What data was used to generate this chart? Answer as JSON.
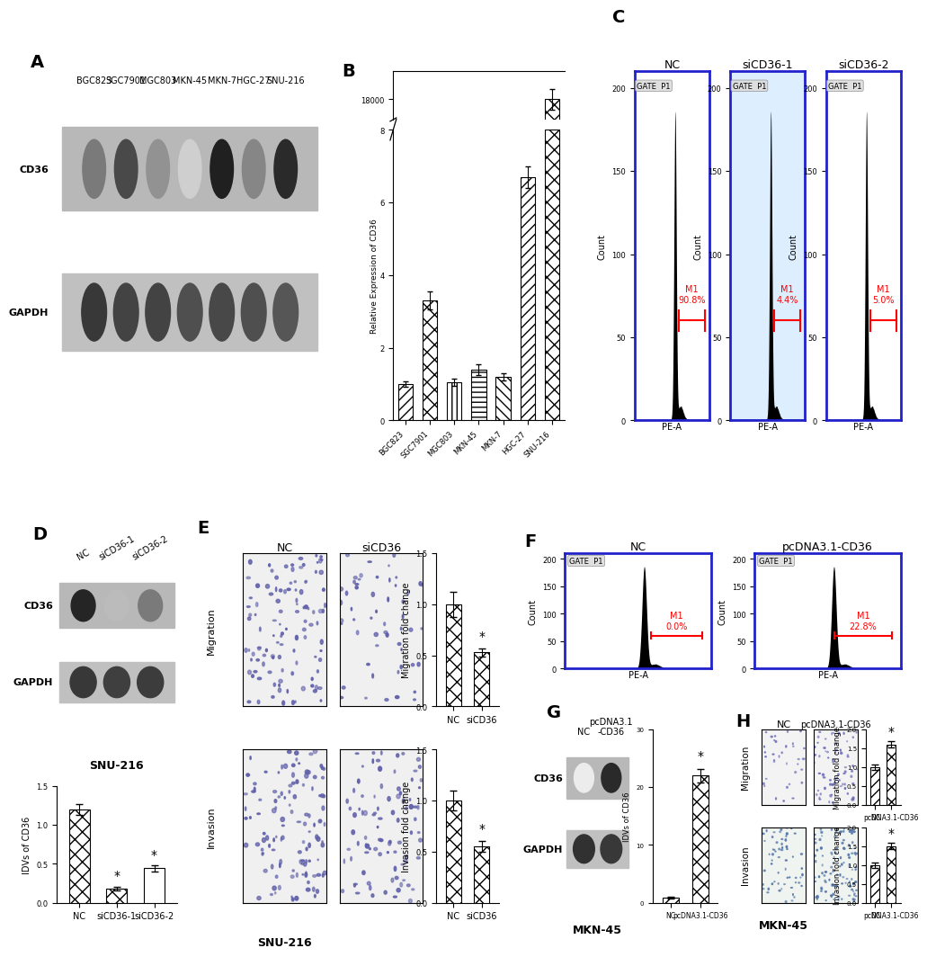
{
  "panel_B": {
    "categories": [
      "BGC823",
      "SGC7901",
      "MGC803",
      "MKN-45",
      "MKN-7",
      "HGC-27",
      "SNU-216"
    ],
    "values": [
      1.0,
      3.3,
      1.05,
      1.4,
      1.2,
      6.7,
      18000
    ],
    "errors": [
      0.08,
      0.25,
      0.1,
      0.15,
      0.1,
      0.3,
      250
    ],
    "ylabel": "Relative Expression of CD36",
    "hatch_patterns": [
      "///",
      "xx",
      "|||",
      "---",
      "\\\\\\",
      "///",
      "xx"
    ]
  },
  "panel_D_bar": {
    "categories": [
      "NC",
      "siCD36-1",
      "siCD36-2"
    ],
    "values": [
      1.2,
      0.18,
      0.44
    ],
    "errors": [
      0.07,
      0.025,
      0.04
    ],
    "ylabel": "IDVs of CD36",
    "ylim": [
      0,
      1.5
    ],
    "yticks": [
      0.0,
      0.5,
      1.0,
      1.5
    ],
    "hatch_patterns": [
      "xx",
      "xx",
      "==="
    ]
  },
  "panel_E_migration": {
    "categories": [
      "NC",
      "siCD36"
    ],
    "values": [
      1.0,
      0.53
    ],
    "errors": [
      0.12,
      0.04
    ],
    "ylabel": "Migration fold change",
    "ylim": [
      0,
      1.5
    ],
    "yticks": [
      0.0,
      0.5,
      1.0,
      1.5
    ],
    "hatch_patterns": [
      "xx",
      "xx"
    ]
  },
  "panel_E_invasion": {
    "categories": [
      "NC",
      "siCD36"
    ],
    "values": [
      1.0,
      0.55
    ],
    "errors": [
      0.1,
      0.05
    ],
    "ylabel": "Invasion fold change",
    "ylim": [
      0,
      1.5
    ],
    "yticks": [
      0.0,
      0.5,
      1.0,
      1.5
    ],
    "hatch_patterns": [
      "xx",
      "xx"
    ]
  },
  "panel_G_bar": {
    "categories": [
      "NC",
      "pcDNA3.1-CD36"
    ],
    "values": [
      0.8,
      22.0
    ],
    "errors": [
      0.15,
      1.2
    ],
    "ylabel": "IDVs of CD36",
    "ylim": [
      0,
      30
    ],
    "yticks": [
      0,
      10,
      20,
      30
    ],
    "hatch_patterns": [
      "///",
      "xx"
    ]
  },
  "panel_H_migration": {
    "categories": [
      "NC",
      "pcDNA3.1-CD36"
    ],
    "values": [
      1.0,
      1.6
    ],
    "errors": [
      0.07,
      0.09
    ],
    "ylabel": "Migration fold change",
    "ylim": [
      0,
      2.0
    ],
    "yticks": [
      0.0,
      0.5,
      1.0,
      1.5,
      2.0
    ],
    "hatch_patterns": [
      "///",
      "xx"
    ]
  },
  "panel_H_invasion": {
    "categories": [
      "NC",
      "pcDNA3.1-CD36"
    ],
    "values": [
      1.0,
      1.5
    ],
    "errors": [
      0.07,
      0.09
    ],
    "ylabel": "Invasion fold change",
    "ylim": [
      0,
      2.0
    ],
    "yticks": [
      0.0,
      0.5,
      1.0,
      1.5,
      2.0
    ],
    "hatch_patterns": [
      "///",
      "xx"
    ]
  },
  "flow_C_NC_pct": "90.8%",
  "flow_C_si1_pct": "4.4%",
  "flow_C_si2_pct": "5.0%",
  "flow_F_NC_pct": "0.0%",
  "flow_F_pcDNA_pct": "22.8%",
  "panel_A_cd36_intensities": [
    0.55,
    0.75,
    0.45,
    0.2,
    0.92,
    0.5,
    0.88
  ],
  "panel_A_gapdh_intensities": [
    0.85,
    0.8,
    0.8,
    0.75,
    0.78,
    0.75,
    0.72
  ],
  "panel_D_cd36_intensities": [
    0.9,
    0.28,
    0.55
  ],
  "panel_D_gapdh_intensities": [
    0.85,
    0.82,
    0.83
  ],
  "panel_G_cd36_intensities": [
    0.08,
    0.88
  ],
  "panel_G_gapdh_intensities": [
    0.88,
    0.85
  ]
}
